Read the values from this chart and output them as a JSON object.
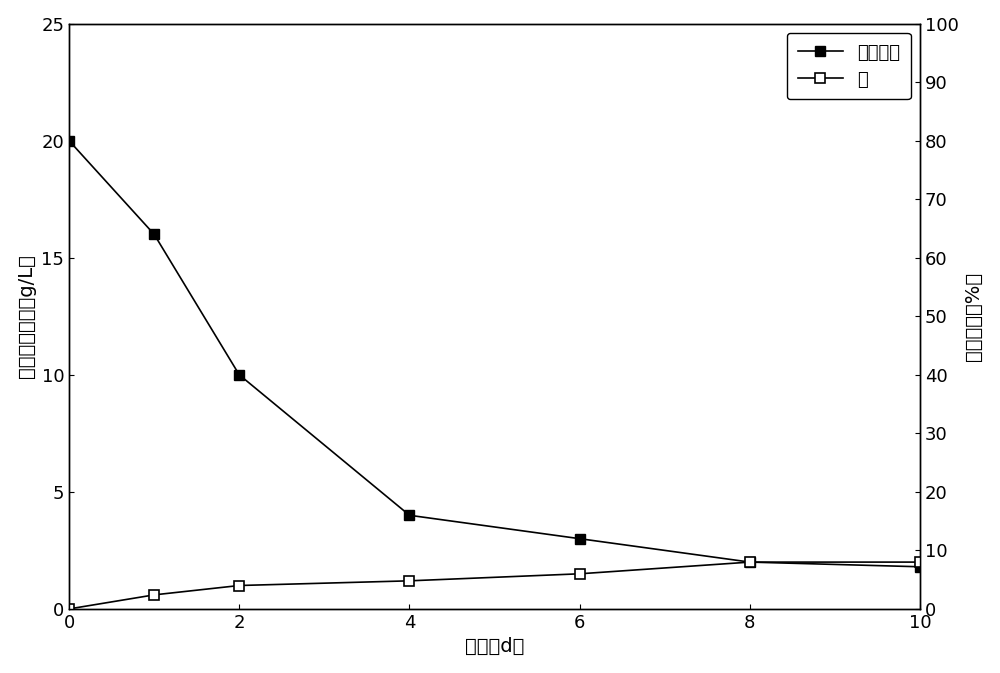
{
  "x": [
    0,
    1,
    2,
    4,
    6,
    8,
    10
  ],
  "kmno4_y": [
    20,
    16,
    10,
    4,
    3,
    2,
    1.8
  ],
  "pyrene_y_right": [
    0,
    2.4,
    4.0,
    4.8,
    6.0,
    8.0,
    8.0
  ],
  "xlabel": "时间（d）",
  "ylabel_left": "高锄酸钙浓度（g/L）",
  "ylabel_right": "萸挥发率（%）",
  "legend1": "高锄酸钙",
  "legend2": "萸",
  "xlim": [
    0,
    10
  ],
  "ylim_left": [
    0,
    25
  ],
  "ylim_right": [
    0,
    100
  ],
  "xticks": [
    0,
    2,
    4,
    6,
    8,
    10
  ],
  "yticks_left": [
    0,
    5,
    10,
    15,
    20,
    25
  ],
  "yticks_right": [
    0,
    10,
    20,
    30,
    40,
    50,
    60,
    70,
    80,
    90,
    100
  ],
  "color": "#000000",
  "bg_color": "#ffffff",
  "linewidth": 1.2,
  "markersize": 7,
  "label_fontsize": 14,
  "tick_fontsize": 13,
  "legend_fontsize": 13
}
